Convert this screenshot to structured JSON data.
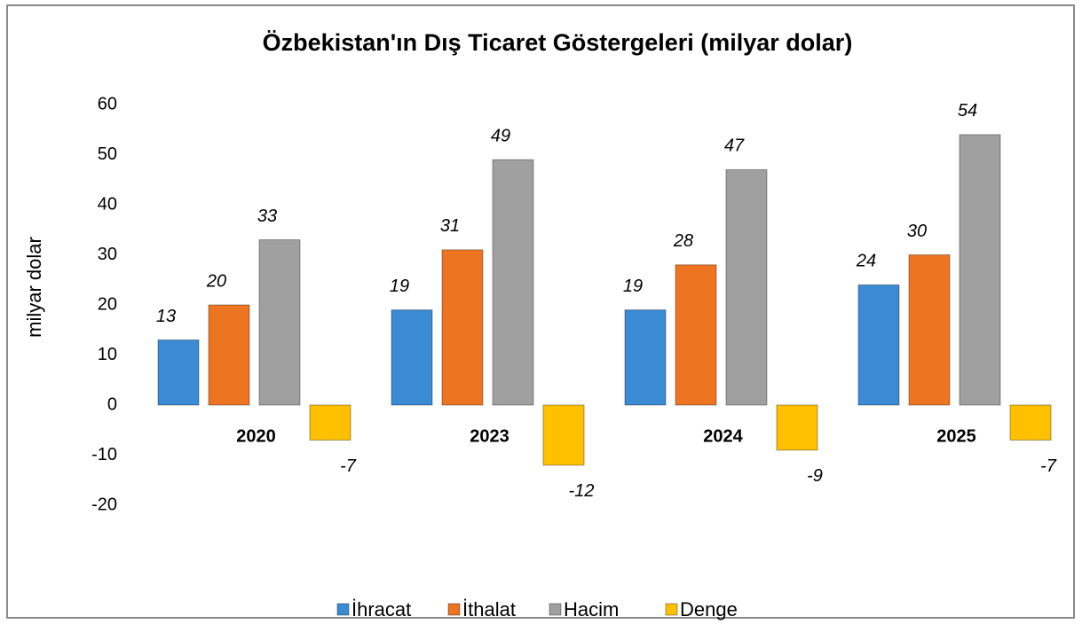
{
  "chart_data": {
    "type": "bar",
    "title": "Özbekistan'ın Dış Ticaret Göstergeleri (milyar dolar)",
    "y_label": "milyar dolar",
    "categories": [
      "2020",
      "2023",
      "2024",
      "2025"
    ],
    "series": [
      {
        "name": "İhracat",
        "color": "#3a8ad4",
        "values": [
          13,
          19,
          19,
          24
        ]
      },
      {
        "name": "İthalat",
        "color": "#ed7420",
        "values": [
          20,
          31,
          28,
          30
        ]
      },
      {
        "name": "Hacim",
        "color": "#a0a0a0",
        "values": [
          33,
          49,
          47,
          54
        ]
      },
      {
        "name": "Denge",
        "color": "#ffc000",
        "values": [
          -7,
          -12,
          -9,
          -7
        ]
      }
    ],
    "ylim": [
      -20,
      60
    ],
    "yticks": [
      -20,
      -10,
      0,
      10,
      20,
      30,
      40,
      50,
      60
    ],
    "grid": false,
    "legend": "bottom"
  }
}
